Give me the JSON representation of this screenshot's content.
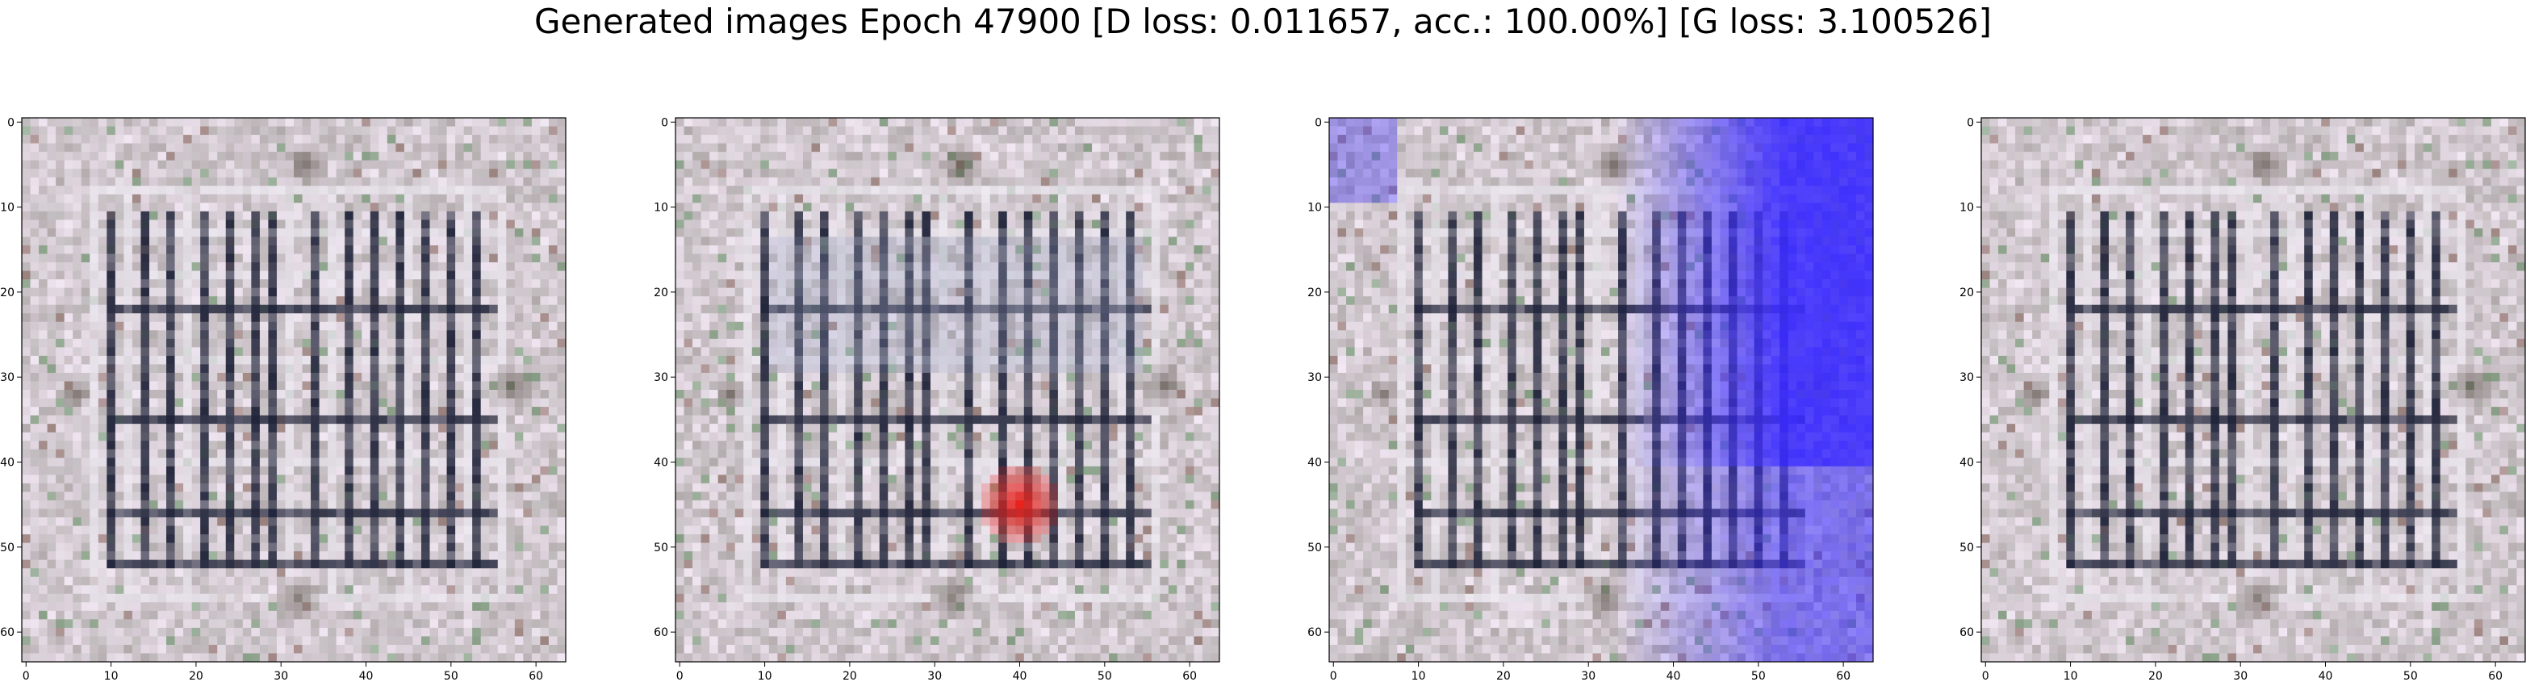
{
  "figure": {
    "title": "Generated images Epoch 47900 [D loss: 0.011657, acc.: 100.00%] [G loss: 3.100526]",
    "panel_count": 4,
    "image_resolution": 64,
    "axis_ticks": {
      "x": [
        "0",
        "10",
        "20",
        "30",
        "40",
        "50",
        "60"
      ],
      "y": [
        "0",
        "10",
        "20",
        "30",
        "40",
        "50",
        "60"
      ]
    },
    "panels": [
      {
        "name": "generated-image-1",
        "variant": "gray-grid"
      },
      {
        "name": "generated-image-2",
        "variant": "red-spot"
      },
      {
        "name": "generated-image-3",
        "variant": "blue-tint"
      },
      {
        "name": "generated-image-4",
        "variant": "gray-grid"
      }
    ],
    "colors": {
      "background": "#c8bec4",
      "dark_bars": "#1e2238",
      "light_bars": "#ece8f0",
      "red_spot": "#e8231e",
      "blue_tint": "#3a2bff",
      "frame": "#000000"
    }
  }
}
